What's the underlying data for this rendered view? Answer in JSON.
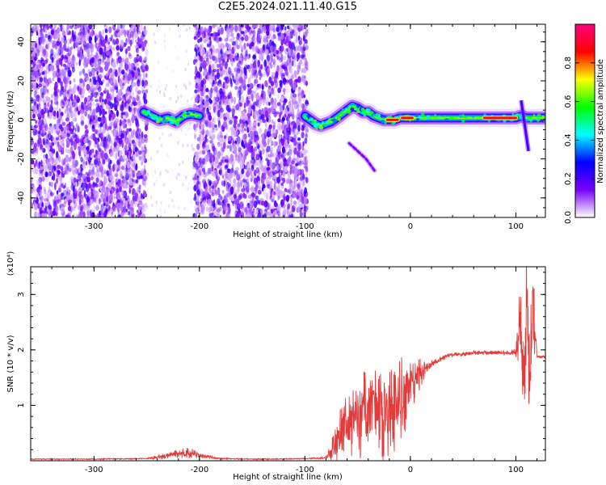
{
  "title": "C2E5.2024.021.11.40.G15",
  "chart_data": [
    {
      "type": "heatmap",
      "xlabel": "Height of straight line (km)",
      "ylabel": "Frequency (Hz)",
      "xlim": [
        -360,
        128
      ],
      "ylim": [
        -50,
        49
      ],
      "xticks": [
        -300,
        -200,
        -100,
        0,
        100
      ],
      "yticks": [
        -40,
        -20,
        0,
        20,
        40
      ],
      "grid": false,
      "colorbar": {
        "label": "Normalized spectral amplitude",
        "range": [
          0,
          1
        ],
        "ticks": [
          "0.0",
          "0.2",
          "0.4",
          "0.6",
          "0.8"
        ],
        "colors": [
          "#ffffff",
          "#7a00ff",
          "#0000ff",
          "#00ffff",
          "#00ff00",
          "#ffff00",
          "#ff0000",
          "#ff0080"
        ]
      },
      "noise_regions": [
        {
          "x": [
            -360,
            -250
          ],
          "y": [
            -50,
            49
          ]
        },
        {
          "x": [
            -205,
            -98
          ],
          "y": [
            -50,
            49
          ]
        }
      ],
      "ridge": {
        "x": [
          -253,
          -245,
          -238,
          -230,
          -222,
          -215,
          -208,
          -200,
          -190,
          -180,
          -170,
          -160,
          -150,
          -140,
          -130,
          -120,
          -110,
          -100,
          -95,
          -90,
          -85,
          -80,
          -75,
          -70,
          -65,
          -60,
          -55,
          -50,
          -45,
          -40,
          -35,
          -30,
          -25,
          -20,
          -15,
          -10,
          -5,
          0,
          10,
          20,
          40,
          60,
          80,
          95,
          100,
          105,
          110,
          115,
          128
        ],
        "y": [
          4,
          2,
          0,
          1,
          -1,
          2,
          3,
          2,
          null,
          null,
          null,
          null,
          null,
          null,
          null,
          null,
          null,
          2,
          0,
          -2,
          -3,
          -2,
          -1,
          1,
          3,
          5,
          7,
          6,
          4,
          4,
          2,
          1,
          0,
          0,
          0,
          1,
          1,
          1,
          1,
          1,
          1,
          1,
          1,
          1,
          1,
          2,
          1,
          1,
          1
        ]
      },
      "ridge_peak_segments": [
        {
          "x": [
            -22,
            -12
          ],
          "y": 0
        },
        {
          "x": [
            -8,
            2
          ],
          "y": 1
        },
        {
          "x": [
            70,
            100
          ],
          "y": 1
        }
      ],
      "branch": {
        "x": [
          -58,
          -50,
          -42,
          -34
        ],
        "y": [
          -12,
          -16,
          -20,
          -26
        ]
      },
      "spike": {
        "x": [
          105,
          112
        ],
        "y": [
          10,
          -16
        ]
      }
    },
    {
      "type": "line",
      "xlabel": "Height of straight line (km)",
      "ylabel": "SNR (10 * v/v)",
      "yscale_label": "(x10⁴)",
      "xlim": [
        -360,
        128
      ],
      "ylim": [
        0,
        3.5
      ],
      "xticks": [
        -300,
        -200,
        -100,
        0,
        100
      ],
      "yticks": [
        1,
        2,
        3
      ],
      "grid": false,
      "series": [
        {
          "color": "#e33a3a",
          "x": [
            -360,
            -300,
            -250,
            -235,
            -225,
            -215,
            -205,
            -195,
            -180,
            -150,
            -120,
            -100,
            -80,
            -72,
            -65,
            -55,
            -45,
            -35,
            -25,
            -15,
            -5,
            5,
            15,
            25,
            35,
            45,
            55,
            65,
            75,
            85,
            95,
            100,
            104,
            108,
            110,
            113,
            116,
            120,
            128
          ],
          "y": [
            0.03,
            0.03,
            0.04,
            0.08,
            0.12,
            0.14,
            0.13,
            0.08,
            0.04,
            0.03,
            0.03,
            0.04,
            0.05,
            0.25,
            0.55,
            0.7,
            0.8,
            0.85,
            0.9,
            1.0,
            1.2,
            1.5,
            1.68,
            1.8,
            1.9,
            1.92,
            1.94,
            1.95,
            1.95,
            1.95,
            1.94,
            1.97,
            2.5,
            1.2,
            3.3,
            1.0,
            2.7,
            1.88,
            1.87
          ],
          "noise_amplitude": [
            0.01,
            0.01,
            0.01,
            0.06,
            0.08,
            0.1,
            0.08,
            0.04,
            0.01,
            0.01,
            0.01,
            0.01,
            0.02,
            0.3,
            0.5,
            0.65,
            0.8,
            0.85,
            0.9,
            0.85,
            0.7,
            0.4,
            0.12,
            0.05,
            0.04,
            0.04,
            0.04,
            0.04,
            0.04,
            0.04,
            0.05,
            0.1,
            0.9,
            1.2,
            1.4,
            1.3,
            1.0,
            0.03,
            0.02
          ]
        }
      ]
    }
  ]
}
